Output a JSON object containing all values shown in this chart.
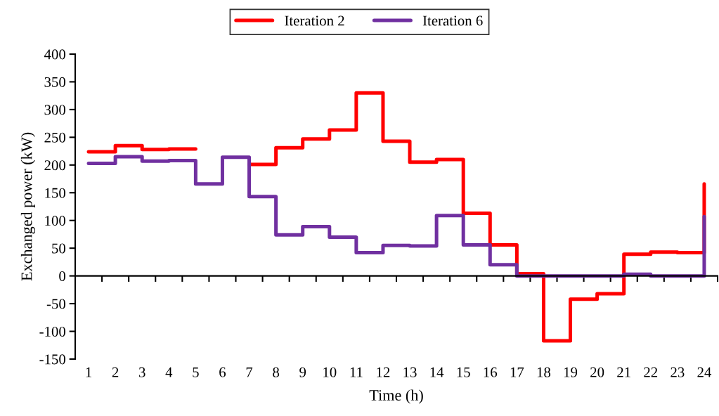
{
  "chart_data": {
    "type": "step",
    "xlabel": "Time (h)",
    "ylabel": "Exchanged power (kW)",
    "categories": [
      "1",
      "2",
      "3",
      "4",
      "5",
      "6",
      "7",
      "8",
      "9",
      "10",
      "11",
      "12",
      "13",
      "14",
      "15",
      "16",
      "17",
      "18",
      "19",
      "20",
      "21",
      "22",
      "23",
      "24"
    ],
    "series": [
      {
        "name": "Iteration 2",
        "color": "#ff0000",
        "values": [
          224,
          235,
          228,
          229,
          null,
          null,
          201,
          231,
          247,
          263,
          330,
          243,
          205,
          210,
          113,
          56,
          4,
          -117,
          -42,
          -32,
          39,
          43,
          42,
          166
        ]
      },
      {
        "name": "Iteration 6",
        "color": "#7030a0",
        "values": [
          203,
          215,
          207,
          208,
          166,
          214,
          143,
          74,
          89,
          70,
          42,
          55,
          54,
          109,
          56,
          20,
          0,
          0,
          0,
          0,
          3,
          0,
          0,
          107
        ]
      }
    ],
    "ylim": [
      -150,
      400
    ],
    "yticks": [
      -150,
      -100,
      -50,
      0,
      50,
      100,
      150,
      200,
      250,
      300,
      350,
      400
    ],
    "legend": "top",
    "marker": "none",
    "line_style": "solid"
  }
}
